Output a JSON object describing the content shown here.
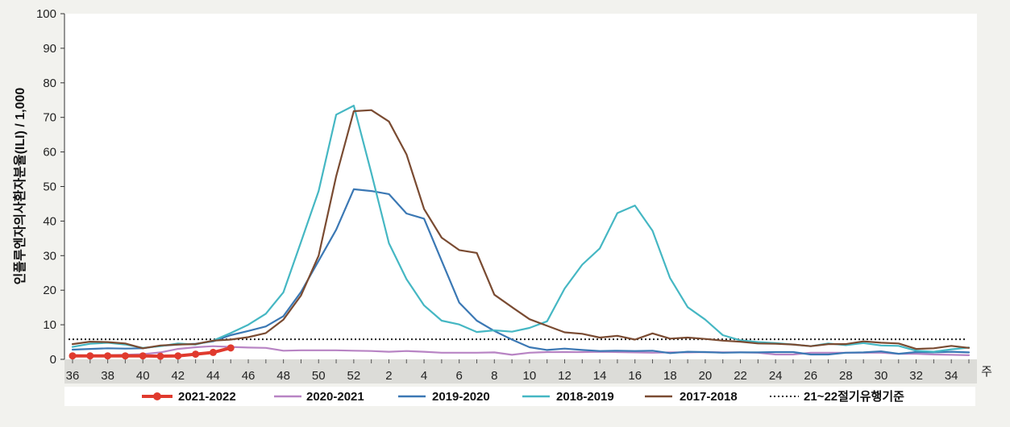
{
  "chart_data": {
    "type": "line",
    "ylabel": "인플루엔자의사환자분율(ILI) / 1,000",
    "xlabel": "주",
    "ylim": [
      0,
      100
    ],
    "yticks": [
      0,
      10,
      20,
      30,
      40,
      50,
      60,
      70,
      80,
      90,
      100
    ],
    "x_categories": [
      "36",
      "37",
      "38",
      "39",
      "40",
      "41",
      "42",
      "43",
      "44",
      "45",
      "46",
      "47",
      "48",
      "49",
      "50",
      "51",
      "52",
      "1",
      "2",
      "3",
      "4",
      "5",
      "6",
      "7",
      "8",
      "9",
      "10",
      "11",
      "12",
      "13",
      "14",
      "15",
      "16",
      "17",
      "18",
      "19",
      "20",
      "21",
      "22",
      "23",
      "24",
      "25",
      "26",
      "27",
      "28",
      "29",
      "30",
      "31",
      "32",
      "33",
      "34",
      "35"
    ],
    "x_tick_labels": [
      "36",
      "38",
      "40",
      "42",
      "44",
      "46",
      "48",
      "50",
      "52",
      "2",
      "4",
      "6",
      "8",
      "10",
      "12",
      "14",
      "16",
      "18",
      "20",
      "22",
      "24",
      "26",
      "28",
      "30",
      "32",
      "34"
    ],
    "grid": false,
    "legend_position": "bottom",
    "series": [
      {
        "name": "2020-2021",
        "color": "#b884c4",
        "values": [
          1.2,
          1.1,
          1.2,
          1.3,
          1.5,
          2.0,
          3.0,
          3.5,
          3.8,
          3.6,
          3.4,
          3.3,
          2.5,
          2.6,
          2.6,
          2.6,
          2.5,
          2.4,
          2.2,
          2.4,
          2.2,
          1.9,
          1.9,
          1.9,
          2.0,
          1.3,
          1.9,
          2.1,
          2.1,
          2.1,
          2.2,
          2.1,
          2.0,
          1.9,
          2.0,
          2.0,
          2.1,
          2.0,
          2.0,
          1.9,
          1.4,
          1.4,
          1.9,
          1.9,
          1.9,
          1.9,
          1.9,
          1.6,
          1.6,
          1.4,
          1.3,
          1.2
        ]
      },
      {
        "name": "2019-2020",
        "color": "#3b78b4",
        "values": [
          2.8,
          3.0,
          3.2,
          3.1,
          3.2,
          3.9,
          4.3,
          4.5,
          5.2,
          7.0,
          8.2,
          9.5,
          12.5,
          19.5,
          28.5,
          37.5,
          49.2,
          48.7,
          47.8,
          42.2,
          40.7,
          28.5,
          16.4,
          11.2,
          8.2,
          5.7,
          3.5,
          2.7,
          3.1,
          2.7,
          2.4,
          2.5,
          2.4,
          2.5,
          1.8,
          2.2,
          2.1,
          1.9,
          2.0,
          2.0,
          2.1,
          2.1,
          1.4,
          1.4,
          1.9,
          2.0,
          2.3,
          1.6,
          2.1,
          2.0,
          2.2,
          2.0
        ]
      },
      {
        "name": "2018-2019",
        "color": "#45b7c3",
        "values": [
          3.6,
          4.5,
          4.8,
          4.3,
          3.3,
          3.8,
          4.6,
          4.3,
          5.4,
          7.6,
          10.0,
          13.2,
          19.4,
          34.0,
          48.7,
          70.8,
          73.4,
          53.9,
          33.6,
          23.2,
          15.6,
          11.2,
          10.1,
          7.9,
          8.4,
          8.0,
          9.1,
          11.0,
          20.5,
          27.4,
          32.1,
          42.3,
          44.5,
          37.2,
          23.5,
          15.1,
          11.5,
          7.0,
          5.5,
          5.0,
          4.7,
          4.3,
          3.8,
          4.6,
          4.1,
          4.7,
          4.0,
          3.9,
          2.5,
          2.2,
          2.9,
          3.4
        ]
      },
      {
        "name": "2017-2018",
        "color": "#7a4b32",
        "values": [
          4.4,
          5.1,
          5.0,
          4.6,
          3.2,
          4.0,
          4.3,
          4.4,
          5.4,
          5.7,
          6.4,
          7.6,
          11.5,
          18.5,
          30.0,
          53.0,
          71.8,
          72.1,
          68.8,
          59.3,
          43.5,
          35.2,
          31.6,
          30.8,
          18.7,
          15.1,
          11.6,
          9.7,
          7.8,
          7.4,
          6.3,
          6.8,
          5.7,
          7.5,
          6.0,
          6.3,
          5.9,
          5.4,
          5.1,
          4.6,
          4.5,
          4.3,
          3.8,
          4.4,
          4.4,
          5.2,
          4.8,
          4.6,
          3.0,
          3.2,
          3.9,
          3.3
        ]
      },
      {
        "name": "2021-2022",
        "color": "#e03a2e",
        "values": [
          1.0,
          1.0,
          1.0,
          1.0,
          1.0,
          0.9,
          1.0,
          1.5,
          2.0,
          3.3
        ]
      },
      {
        "name": "21~22절기유행기준",
        "color": "#222222",
        "style": "dotted",
        "threshold": 5.8
      }
    ],
    "legend_order": [
      "2021-2022",
      "2020-2021",
      "2019-2020",
      "2018-2019",
      "2017-2018",
      "21~22절기유행기준"
    ]
  }
}
